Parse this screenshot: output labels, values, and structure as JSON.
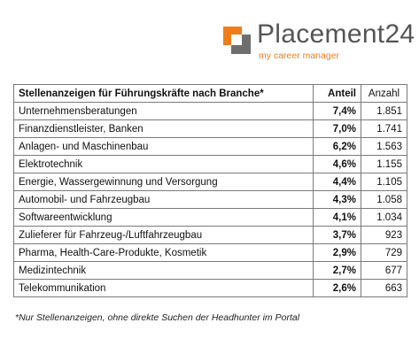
{
  "logo": {
    "name": "Placement24",
    "tagline": "my career manager"
  },
  "table": {
    "headers": [
      "Stellenanzeigen für Führungskräfte nach Branche*",
      "Anteil",
      "Anzahl"
    ],
    "rows": [
      {
        "branche": "Unternehmensberatungen",
        "anteil": "7,4%",
        "anzahl": "1.851"
      },
      {
        "branche": "Finanzdienstleister, Banken",
        "anteil": "7,0%",
        "anzahl": "1.741"
      },
      {
        "branche": "Anlagen- und Maschinenbau",
        "anteil": "6,2%",
        "anzahl": "1.563"
      },
      {
        "branche": "Elektrotechnik",
        "anteil": "4,6%",
        "anzahl": "1.155"
      },
      {
        "branche": "Energie, Wassergewinnung und Versorgung",
        "anteil": "4,4%",
        "anzahl": "1.105"
      },
      {
        "branche": "Automobil- und Fahrzeugbau",
        "anteil": "4,3%",
        "anzahl": "1.058"
      },
      {
        "branche": "Softwareentwicklung",
        "anteil": "4,1%",
        "anzahl": "1.034"
      },
      {
        "branche": "Zulieferer für Fahrzeug-/Luftfahrzeugbau",
        "anteil": "3,7%",
        "anzahl": "923"
      },
      {
        "branche": "Pharma, Health-Care-Produkte, Kosmetik",
        "anteil": "2,9%",
        "anzahl": "729"
      },
      {
        "branche": "Medizintechnik",
        "anteil": "2,7%",
        "anzahl": "677"
      },
      {
        "branche": "Telekommunikation",
        "anteil": "2,6%",
        "anzahl": "663"
      }
    ]
  },
  "footnote": "*Nur Stellenanzeigen, ohne direkte Suchen der Headhunter im Portal"
}
